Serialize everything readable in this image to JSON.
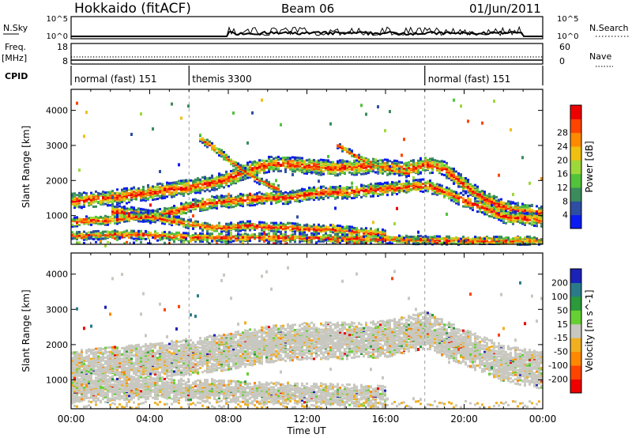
{
  "header": {
    "station": "Hokkaido (fitACF)",
    "beam": "Beam 06",
    "date": "01/Jun/2011"
  },
  "noise_panel": {
    "left_label": "N.Sky",
    "right_label": "N.Search",
    "ticks": [
      "10^5",
      "10^0"
    ]
  },
  "freq_panel": {
    "left_label_line1": "Freq.",
    "left_label_line2": "[MHz]",
    "left_ticks": [
      "18",
      "8"
    ],
    "right_label": "Nave",
    "right_ticks": [
      "60",
      "0"
    ]
  },
  "cpid": {
    "label": "CPID",
    "segments": [
      {
        "text": "normal (fast) 151",
        "start": 0,
        "end": 6
      },
      {
        "text": "themis 3300",
        "start": 6,
        "end": 18
      },
      {
        "text": "normal (fast) 151",
        "start": 18,
        "end": 24
      }
    ]
  },
  "chart_data": [
    {
      "type": "heatmap",
      "title": "Power",
      "ylabel": "Slant Range [km]",
      "xlabel": "Time UT",
      "xlim": [
        0,
        24
      ],
      "ylim": [
        180,
        4600
      ],
      "yticks": [
        1000,
        2000,
        3000,
        4000
      ],
      "colorbar": {
        "label": "Power [dB]",
        "ticks": [
          "4",
          "8",
          "12",
          "16",
          "20",
          "24",
          "28"
        ],
        "colors": [
          "#0a1cf0",
          "#2e4ea2",
          "#3a8c5c",
          "#52c23a",
          "#9dd83a",
          "#f0c010",
          "#ff8a00",
          "#ff4400",
          "#ee0000"
        ]
      },
      "bands": [
        {
          "points": [
            [
              0,
              1450
            ],
            [
              1,
              1500
            ],
            [
              2,
              1550
            ],
            [
              3,
              1620
            ],
            [
              4,
              1700
            ],
            [
              5,
              1780
            ],
            [
              6,
              1850
            ],
            [
              7,
              1950
            ],
            [
              8,
              2100
            ],
            [
              9,
              2350
            ],
            [
              10,
              2500
            ],
            [
              11,
              2500
            ],
            [
              12,
              2450
            ],
            [
              13,
              2400
            ],
            [
              14,
              2400
            ],
            [
              15,
              2450
            ],
            [
              16,
              2420
            ],
            [
              17,
              2350
            ],
            [
              18,
              2500
            ],
            [
              19,
              2350
            ],
            [
              20,
              1900
            ],
            [
              21,
              1500
            ],
            [
              22,
              1250
            ],
            [
              23,
              1150
            ],
            [
              24,
              1100
            ]
          ],
          "width": 220
        },
        {
          "points": [
            [
              2,
              1150
            ],
            [
              3,
              1100
            ],
            [
              4,
              1000
            ],
            [
              5,
              1100
            ],
            [
              6,
              1300
            ],
            [
              7,
              1400
            ],
            [
              8,
              1450
            ],
            [
              9,
              1500
            ],
            [
              10,
              1550
            ],
            [
              11,
              1550
            ],
            [
              12,
              1650
            ],
            [
              13,
              1700
            ],
            [
              14,
              1700
            ],
            [
              15,
              1750
            ],
            [
              16,
              1800
            ],
            [
              17,
              1850
            ],
            [
              18,
              1900
            ],
            [
              19,
              1700
            ],
            [
              20,
              1450
            ],
            [
              21,
              1250
            ],
            [
              22,
              1000
            ],
            [
              23,
              950
            ],
            [
              24,
              900
            ]
          ],
          "width": 180
        },
        {
          "points": [
            [
              0,
              850
            ],
            [
              1,
              900
            ],
            [
              2,
              900
            ],
            [
              3,
              1000
            ],
            [
              4,
              1000
            ],
            [
              5,
              900
            ],
            [
              6,
              800
            ],
            [
              7,
              700
            ],
            [
              8,
              700
            ],
            [
              9,
              750
            ],
            [
              10,
              700
            ],
            [
              11,
              700
            ],
            [
              12,
              650
            ],
            [
              13,
              650
            ],
            [
              14,
              600
            ],
            [
              15,
              550
            ],
            [
              16,
              500
            ]
          ],
          "width": 130
        },
        {
          "points": [
            [
              6.5,
              3250
            ],
            [
              7.5,
              2850
            ],
            [
              8.5,
              2400
            ],
            [
              9.5,
              2050
            ],
            [
              10.5,
              1800
            ]
          ],
          "width": 110
        },
        {
          "points": [
            [
              13.5,
              3050
            ],
            [
              14.5,
              2700
            ],
            [
              15.5,
              2450
            ],
            [
              16.5,
              2300
            ],
            [
              17.2,
              2250
            ]
          ],
          "width": 90
        },
        {
          "points": [
            [
              0,
              450
            ],
            [
              2,
              500
            ],
            [
              4,
              480
            ],
            [
              6,
              420
            ],
            [
              8,
              400
            ],
            [
              10,
              420
            ],
            [
              12,
              400
            ],
            [
              14,
              380
            ],
            [
              16,
              360
            ],
            [
              18,
              340
            ],
            [
              20,
              320
            ],
            [
              22,
              320
            ],
            [
              24,
              330
            ]
          ],
          "width": 120
        }
      ]
    },
    {
      "type": "heatmap",
      "title": "Velocity",
      "ylabel": "Slant Range [km]",
      "xlabel": "Time UT",
      "xlim": [
        0,
        24
      ],
      "ylim": [
        180,
        4600
      ],
      "yticks": [
        1000,
        2000,
        3000,
        4000
      ],
      "xticks": [
        "00:00",
        "04:00",
        "08:00",
        "12:00",
        "16:00",
        "20:00",
        "00:00"
      ],
      "colorbar": {
        "label": "Velocity [m s^-1]",
        "ticks": [
          "200",
          "100",
          "50",
          "15",
          "-15",
          "-50",
          "-100",
          "-200"
        ],
        "colors": [
          "#1a22b8",
          "#2a7a8a",
          "#2a9a3a",
          "#66d033",
          "#c8c8c0",
          "#f0b020",
          "#ff8800",
          "#ff4400",
          "#ee0000"
        ]
      },
      "bands": [
        {
          "points": [
            [
              0,
              1350
            ],
            [
              2,
              1450
            ],
            [
              4,
              1550
            ],
            [
              6,
              1700
            ],
            [
              8,
              1850
            ],
            [
              10,
              2050
            ],
            [
              12,
              2150
            ],
            [
              14,
              2150
            ],
            [
              16,
              2200
            ],
            [
              18,
              2450
            ],
            [
              20,
              1950
            ],
            [
              22,
              1500
            ],
            [
              24,
              1300
            ]
          ],
          "width": 520
        },
        {
          "points": [
            [
              0,
              700
            ],
            [
              2,
              750
            ],
            [
              4,
              800
            ],
            [
              6,
              750
            ],
            [
              8,
              700
            ],
            [
              10,
              650
            ],
            [
              12,
              650
            ],
            [
              14,
              600
            ],
            [
              16,
              550
            ]
          ],
          "width": 300
        }
      ]
    }
  ]
}
